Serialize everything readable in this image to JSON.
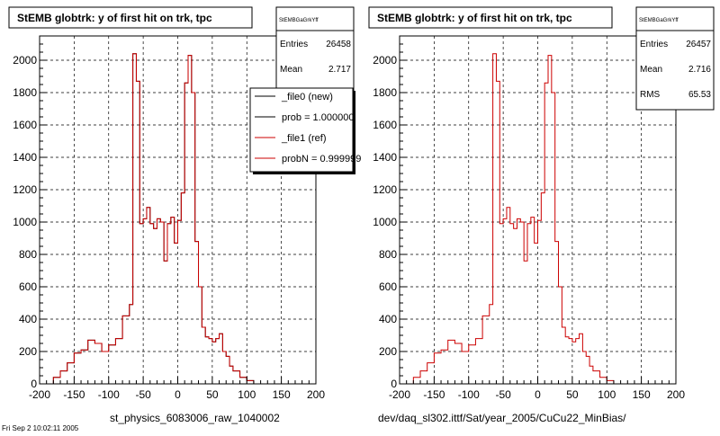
{
  "panels": [
    {
      "title": "StEMB globtrk: y of first hit on trk, tpc",
      "xlabel": "st_physics_6083006_raw_1040002",
      "stats": {
        "name": "StEMBGaGrkYff",
        "rows": [
          {
            "label": "Entries",
            "value": "26458"
          },
          {
            "label": "Mean",
            "value": "2.717"
          }
        ]
      },
      "legend": [
        {
          "text": "_file0 (new)",
          "color": "#000000"
        },
        {
          "text": "prob = 1.000000",
          "color": "#000000"
        },
        {
          "text": "_file1 (ref)",
          "color": "#cc0000"
        },
        {
          "text": "probN = 0.999999",
          "color": "#cc0000"
        }
      ]
    },
    {
      "title": "StEMB globtrk: y of first hit on trk, tpc",
      "xlabel": "dev/daq_sl302.ittf/Sat/year_2005/CuCu22_MinBias/",
      "stats": {
        "name": "StEMBGaGrkYff",
        "rows": [
          {
            "label": "Entries",
            "value": "26457"
          },
          {
            "label": "Mean",
            "value": "2.716"
          },
          {
            "label": "RMS",
            "value": "65.53"
          }
        ]
      },
      "legend": []
    }
  ],
  "footer_text": "Fri Sep 2 10:02:11 2005",
  "chart_data": [
    {
      "type": "histogram",
      "title": "StEMB globtrk: y of first hit on trk, tpc",
      "xlabel": "st_physics_6083006_raw_1040002",
      "xlim": [
        -200,
        200
      ],
      "ylim": [
        0,
        2150
      ],
      "xticks": [
        -200,
        -150,
        -100,
        -50,
        0,
        50,
        100,
        150,
        200
      ],
      "yticks": [
        0,
        200,
        400,
        600,
        800,
        1000,
        1200,
        1400,
        1600,
        1800,
        2000
      ],
      "grid": true,
      "bin_edges": [
        -180,
        -170,
        -160,
        -150,
        -140,
        -130,
        -120,
        -110,
        -100,
        -90,
        -80,
        -70,
        -65,
        -60,
        -55,
        -50,
        -45,
        -40,
        -35,
        -30,
        -25,
        -20,
        -15,
        -10,
        -5,
        0,
        5,
        10,
        15,
        20,
        25,
        30,
        35,
        40,
        45,
        50,
        55,
        60,
        65,
        70,
        75,
        80,
        90,
        100,
        110,
        120,
        130,
        140,
        150,
        160,
        170,
        180
      ],
      "series": [
        {
          "name": "_file0 (new)",
          "color": "#000000",
          "values": [
            40,
            80,
            130,
            190,
            210,
            270,
            250,
            200,
            240,
            280,
            420,
            490,
            2040,
            1870,
            990,
            1020,
            1090,
            990,
            960,
            1020,
            1000,
            760,
            990,
            1030,
            870,
            1010,
            1180,
            1860,
            2030,
            1800,
            880,
            600,
            350,
            290,
            280,
            260,
            280,
            310,
            200,
            170,
            110,
            80,
            40,
            20,
            0,
            0,
            0,
            0,
            0,
            0,
            0
          ]
        },
        {
          "name": "_file1 (ref)",
          "color": "#cc0000",
          "values": [
            40,
            80,
            130,
            190,
            210,
            270,
            250,
            200,
            240,
            280,
            420,
            490,
            2040,
            1870,
            990,
            1020,
            1090,
            990,
            960,
            1020,
            1000,
            760,
            990,
            1030,
            870,
            1010,
            1180,
            1860,
            2030,
            1800,
            880,
            600,
            350,
            290,
            280,
            260,
            280,
            310,
            200,
            170,
            110,
            80,
            40,
            20,
            0,
            0,
            0,
            0,
            0,
            0,
            0
          ]
        }
      ]
    },
    {
      "type": "histogram",
      "title": "StEMB globtrk: y of first hit on trk, tpc",
      "xlabel": "dev/daq_sl302.ittf/Sat/year_2005/CuCu22_MinBias/",
      "xlim": [
        -200,
        200
      ],
      "ylim": [
        0,
        2150
      ],
      "xticks": [
        -200,
        -150,
        -100,
        -50,
        0,
        50,
        100,
        150,
        200
      ],
      "yticks": [
        0,
        200,
        400,
        600,
        800,
        1000,
        1200,
        1400,
        1600,
        1800,
        2000
      ],
      "grid": true,
      "bin_edges": [
        -180,
        -170,
        -160,
        -150,
        -140,
        -130,
        -120,
        -110,
        -100,
        -90,
        -80,
        -70,
        -65,
        -60,
        -55,
        -50,
        -45,
        -40,
        -35,
        -30,
        -25,
        -20,
        -15,
        -10,
        -5,
        0,
        5,
        10,
        15,
        20,
        25,
        30,
        35,
        40,
        45,
        50,
        55,
        60,
        65,
        70,
        75,
        80,
        90,
        100,
        110,
        120,
        130,
        140,
        150,
        160,
        170,
        180
      ],
      "series": [
        {
          "name": "",
          "color": "#cc0000",
          "values": [
            40,
            80,
            130,
            190,
            210,
            270,
            250,
            200,
            240,
            280,
            420,
            490,
            2040,
            1870,
            990,
            1020,
            1090,
            990,
            960,
            1020,
            1000,
            760,
            990,
            1030,
            870,
            1010,
            1180,
            1860,
            2030,
            1800,
            880,
            600,
            350,
            290,
            280,
            260,
            280,
            310,
            200,
            170,
            110,
            80,
            40,
            20,
            0,
            0,
            0,
            0,
            0,
            0,
            0
          ]
        }
      ]
    }
  ]
}
